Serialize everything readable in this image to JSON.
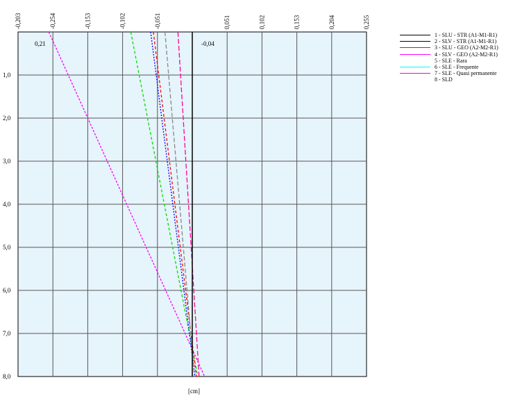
{
  "chart_data": {
    "type": "line",
    "x_tick_labels": [
      "-0,203",
      "-0,254",
      "-0,153",
      "-0,102",
      "-0,051",
      "0,051",
      "0,102",
      "0,153",
      "0,204",
      "0,255"
    ],
    "y_tick_labels": [
      "1,0",
      "2,0",
      "3,0",
      "4,0",
      "5,0",
      "6,0",
      "7,0",
      "8,0"
    ],
    "xlim": [
      -0.255,
      0.255
    ],
    "ylim": [
      0,
      8.0
    ],
    "grid": true,
    "top_left_annotation": "0,21",
    "top_center_annotation": "-0,04",
    "xlabel": "[cm]",
    "legend_position": "right",
    "legend": [
      {
        "label": "1 - SLU - STR (A1-M1-R1)",
        "color": "#000000"
      },
      {
        "label": "2 - SLV - STR (A1-M1-R1)",
        "color": "#000000"
      },
      {
        "label": "3 - SLU - GEO (A2-M2-R1)",
        "color": "#ff0000"
      },
      {
        "label": "4 - SLV - GEO (A2-M2-R1)",
        "color": "#ff00ff"
      },
      {
        "label": "5 - SLE - Rara",
        "color": "#ffffff"
      },
      {
        "label": "6 - SLE - Frequente",
        "color": "#00ffff"
      },
      {
        "label": "7 - SLE - Quasi permanente",
        "color": "#ff00aa"
      },
      {
        "label": "8 - SLD",
        "color": "#ffffff"
      }
    ],
    "series": [
      {
        "color": "#ff00ff",
        "dash": "3,2",
        "x": [
          -0.21,
          0.018
        ],
        "y": [
          0,
          8.0
        ]
      },
      {
        "color": "#00dd00",
        "dash": "4,3",
        "x": [
          -0.09,
          0.008
        ],
        "y": [
          0,
          8.0
        ]
      },
      {
        "color": "#ff0000",
        "dash": "4,3",
        "x": [
          -0.057,
          0.006
        ],
        "y": [
          0,
          8.0
        ]
      },
      {
        "color": "#0000ff",
        "dash": "2,2",
        "x": [
          -0.061,
          0.004
        ],
        "y": [
          0,
          8.0
        ]
      },
      {
        "color": "#888888",
        "dash": "6,3",
        "x": [
          -0.04,
          0.003
        ],
        "y": [
          0,
          8.0
        ]
      },
      {
        "color": "#ff0099",
        "dash": "7,3",
        "x": [
          -0.021,
          0.01
        ],
        "y": [
          0,
          8.0
        ]
      }
    ]
  }
}
